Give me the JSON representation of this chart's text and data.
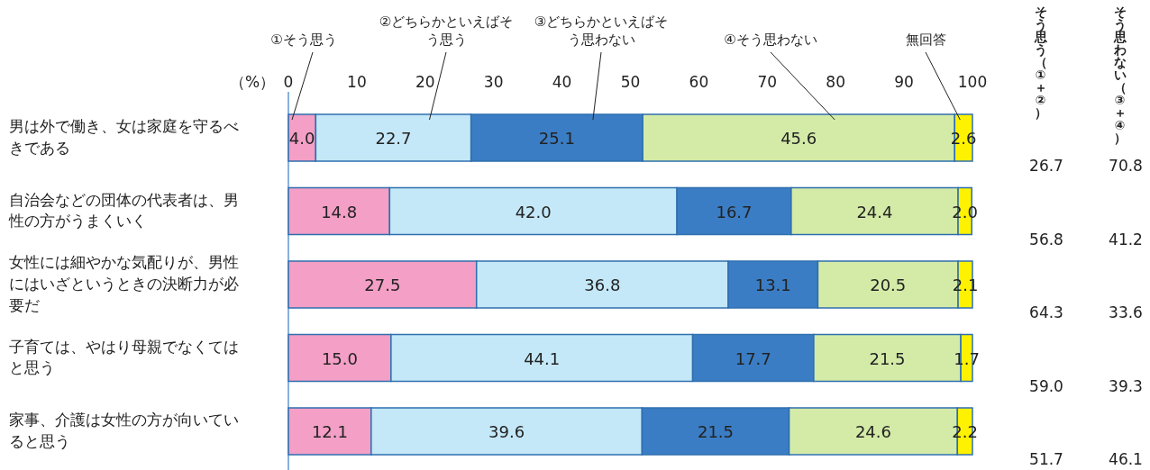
{
  "chart_data": {
    "type": "bar",
    "orientation": "horizontal",
    "stacked": true,
    "legend": false,
    "grid": false,
    "xlabel": "（%）",
    "xlim": [
      0,
      100
    ],
    "xticks": [
      0,
      10,
      20,
      30,
      40,
      50,
      60,
      70,
      80,
      90,
      100
    ],
    "categories": [
      "男は外で働き、女は家庭を守るべきである",
      "自治会などの団体の代表者は、男性の方がうまくいく",
      "女性には細やかな気配りが、男性にはいざというときの決断力が必要だ",
      "子育ては、やはり母親でなくてはと思う",
      "家事、介護は女性の方が向いていると思う"
    ],
    "series": [
      {
        "name": "①そう思う",
        "color": "#f39fc6",
        "values": [
          4.0,
          14.8,
          27.5,
          15.0,
          12.1
        ],
        "value_labels": [
          "4.0",
          "14.8",
          "27.5",
          "15.0",
          "12.1"
        ]
      },
      {
        "name": "②どちらかといえばそう思う",
        "color": "#c4e8f8",
        "values": [
          22.7,
          42.0,
          36.8,
          44.1,
          39.6
        ],
        "value_labels": [
          "22.7",
          "42.0",
          "36.8",
          "44.1",
          "39.6"
        ]
      },
      {
        "name": "③どちらかといえばそう思わない",
        "color": "#3b7dc4",
        "values": [
          25.1,
          16.7,
          13.1,
          17.7,
          21.5
        ],
        "value_labels": [
          "25.1",
          "16.7",
          "13.1",
          "17.7",
          "21.5"
        ]
      },
      {
        "name": "④そう思わない",
        "color": "#d4eba8",
        "values": [
          45.6,
          24.4,
          20.5,
          21.5,
          24.6
        ],
        "value_labels": [
          "45.6",
          "24.4",
          "20.5",
          "21.5",
          "24.6"
        ]
      },
      {
        "name": "無回答",
        "color": "#fff200",
        "values": [
          2.6,
          2.0,
          2.1,
          1.7,
          2.2
        ],
        "value_labels": [
          "2.6",
          "2.0",
          "2.1",
          "1.7",
          "2.2"
        ]
      }
    ],
    "annotations": [
      "そう思う（①＋②）",
      "そう思わない（③＋④）",
      "26.7",
      "70.8",
      "56.8",
      "41.2",
      "64.3",
      "33.6",
      "59.0",
      "39.3",
      "51.7",
      "46.1"
    ]
  }
}
